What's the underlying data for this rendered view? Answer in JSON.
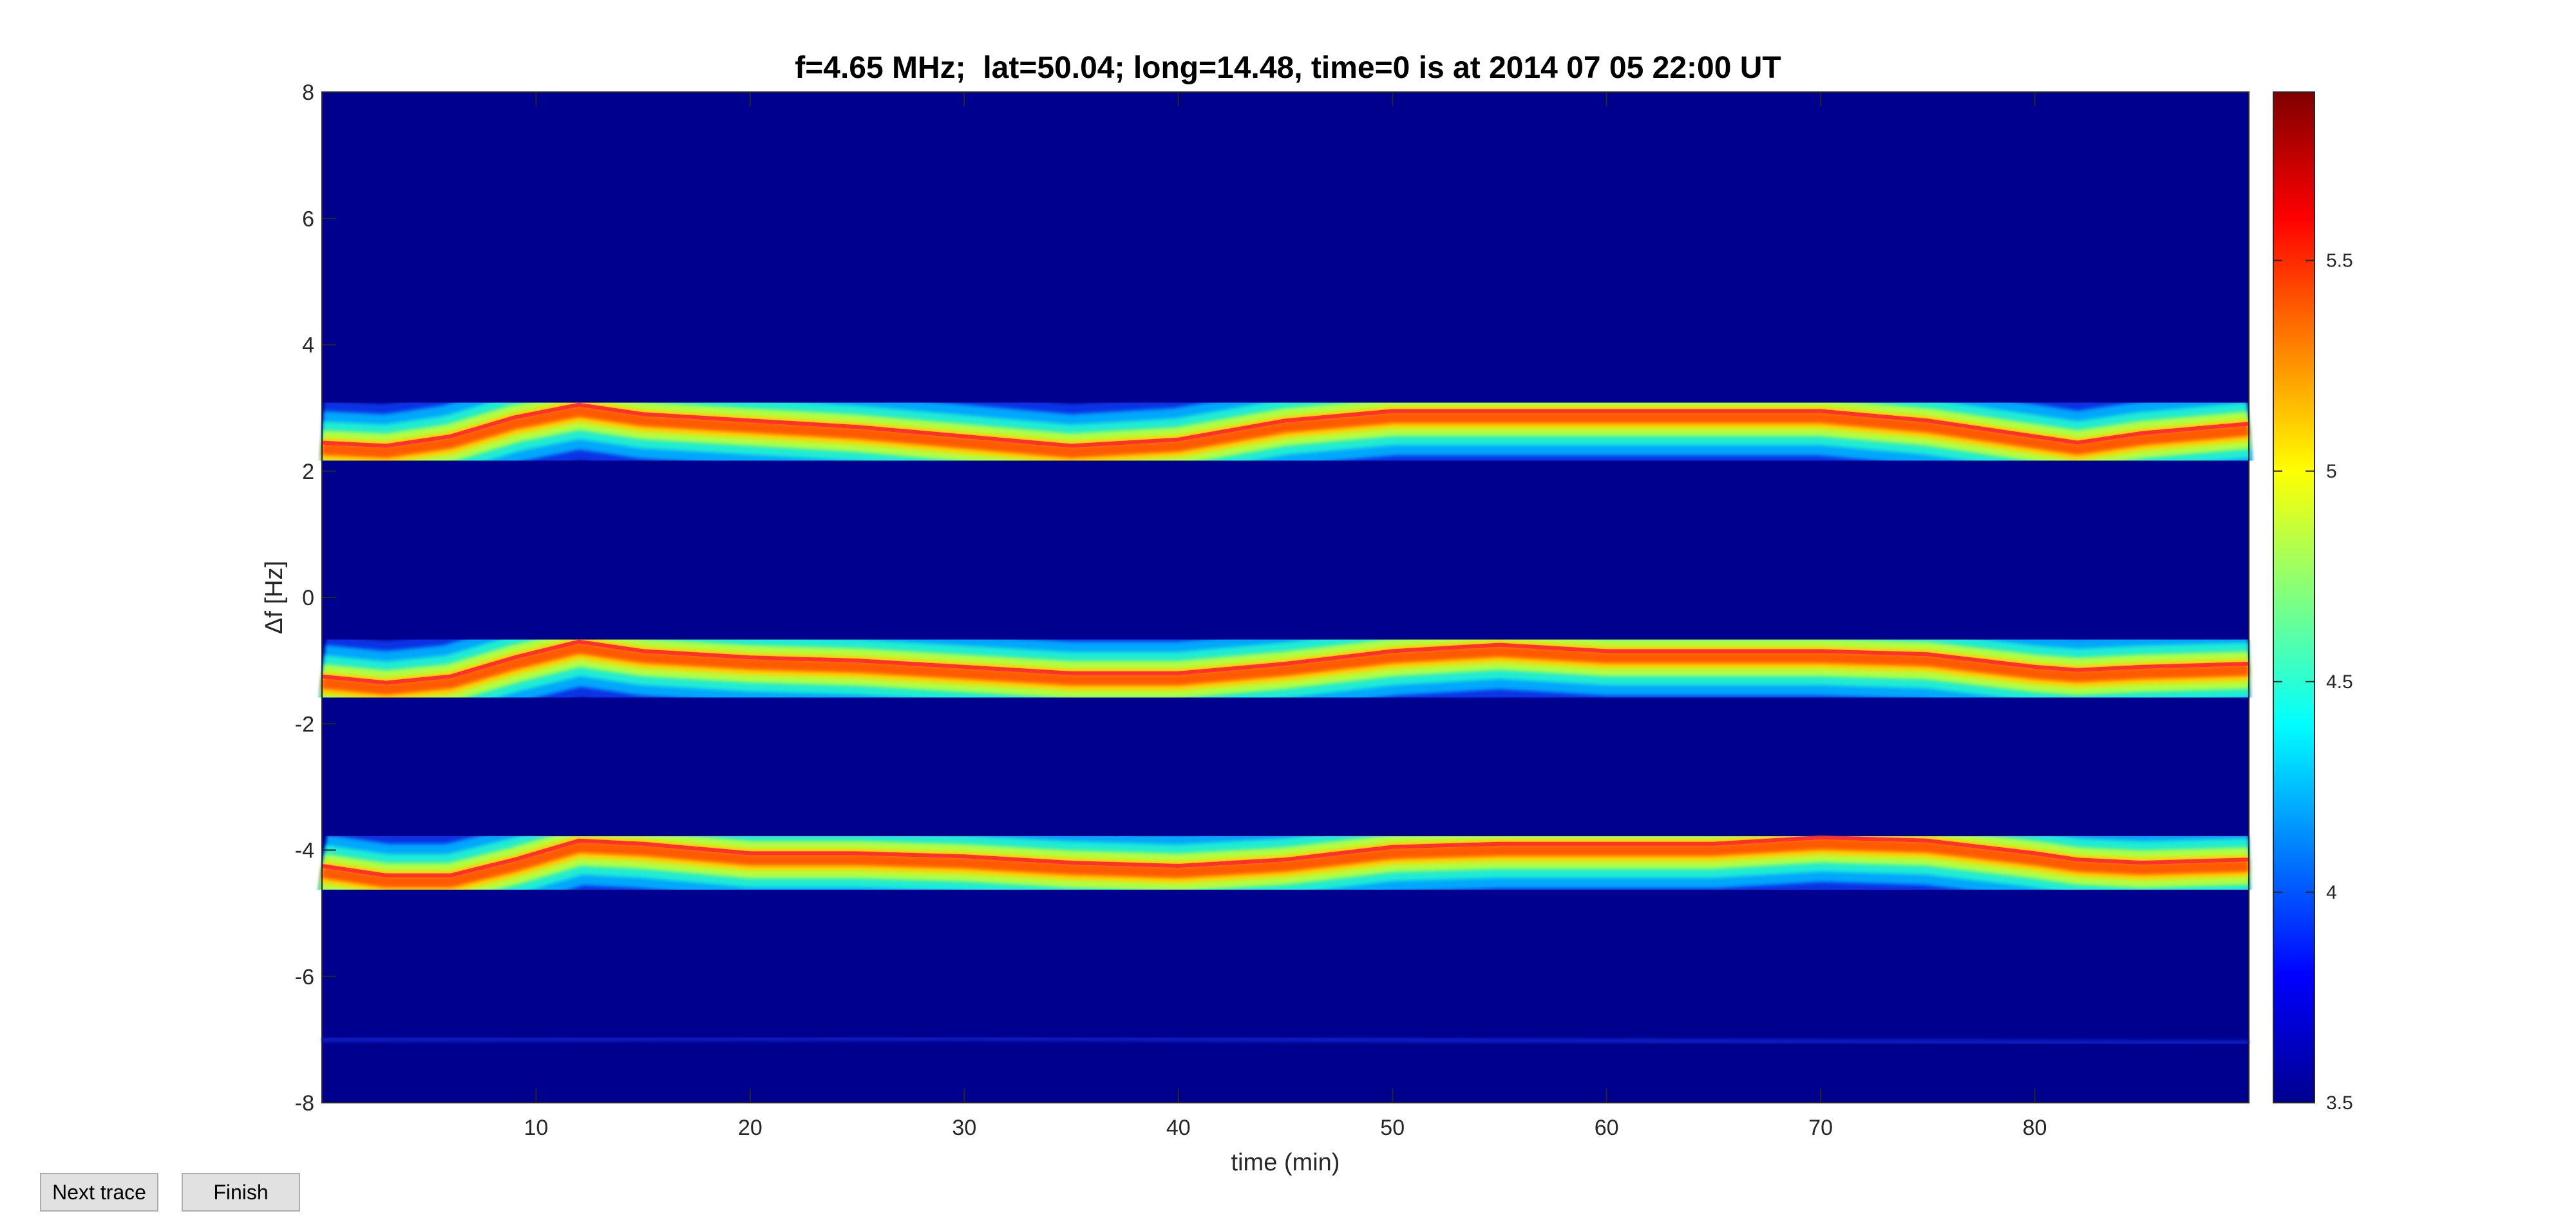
{
  "window": {
    "buttons": {
      "next_trace": "Next trace",
      "finish": "Finish"
    }
  },
  "colors": {
    "background_level": "#00008f",
    "trace_line": "#ff3030",
    "colormap": "jet"
  },
  "chart_data": {
    "type": "heatmap",
    "title": "f=4.65 MHz;  lat=50.04; long=14.48, time=0 is at 2014 07 05 22:00 UT",
    "xlabel": "time (min)",
    "ylabel": "Δf [Hz]",
    "xlim": [
      0,
      90
    ],
    "ylim": [
      -8,
      8
    ],
    "xticks": [
      10,
      20,
      30,
      40,
      50,
      60,
      70,
      80
    ],
    "yticks": [
      8,
      6,
      4,
      2,
      0,
      -2,
      -4,
      -6,
      -8
    ],
    "grid": false,
    "colorbar": {
      "position": "right",
      "range": [
        3.5,
        5.9
      ],
      "ticks": [
        3.5,
        4,
        4.5,
        5,
        5.5
      ]
    },
    "series": [
      {
        "x": [
          0,
          3,
          6,
          9,
          12,
          15,
          20,
          25,
          30,
          35,
          40,
          45,
          50,
          55,
          60,
          65,
          70,
          75,
          80,
          82,
          85,
          90
        ],
        "y": [
          2.45,
          2.4,
          2.55,
          2.85,
          3.05,
          2.9,
          2.8,
          2.7,
          2.55,
          2.4,
          2.5,
          2.8,
          2.95,
          2.95,
          2.95,
          2.95,
          2.95,
          2.8,
          2.55,
          2.45,
          2.6,
          2.75
        ]
      },
      {
        "x": [
          0,
          3,
          6,
          9,
          12,
          15,
          20,
          25,
          30,
          35,
          40,
          45,
          50,
          55,
          60,
          65,
          70,
          75,
          80,
          82,
          85,
          90
        ],
        "y": [
          -1.25,
          -1.35,
          -1.25,
          -0.95,
          -0.7,
          -0.85,
          -0.95,
          -1.0,
          -1.1,
          -1.2,
          -1.2,
          -1.05,
          -0.85,
          -0.75,
          -0.85,
          -0.85,
          -0.85,
          -0.9,
          -1.1,
          -1.15,
          -1.1,
          -1.05
        ]
      },
      {
        "x": [
          0,
          3,
          6,
          9,
          12,
          15,
          20,
          25,
          30,
          35,
          40,
          45,
          50,
          55,
          60,
          65,
          70,
          75,
          80,
          82,
          85,
          90
        ],
        "y": [
          -4.25,
          -4.4,
          -4.4,
          -4.15,
          -3.85,
          -3.9,
          -4.05,
          -4.05,
          -4.1,
          -4.2,
          -4.25,
          -4.15,
          -3.95,
          -3.9,
          -3.9,
          -3.9,
          -3.8,
          -3.85,
          -4.05,
          -4.15,
          -4.2,
          -4.15
        ]
      },
      {
        "x": [
          0,
          30,
          60,
          90
        ],
        "y": [
          -7.0,
          -6.98,
          -7.02,
          -7.05
        ]
      }
    ]
  }
}
